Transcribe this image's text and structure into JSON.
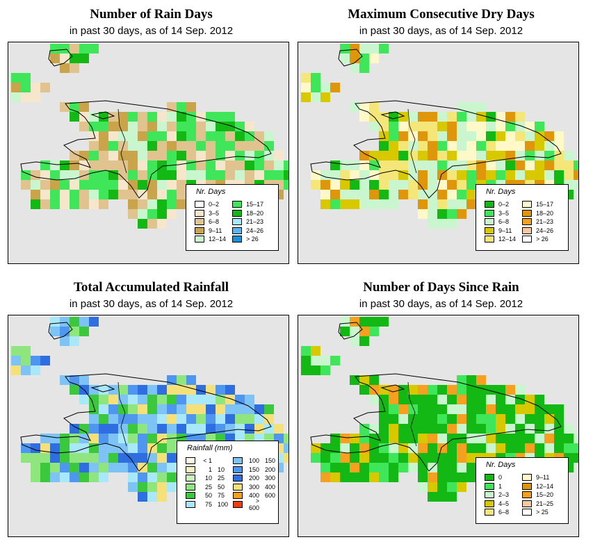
{
  "date_text": "in past 30 days, as of  14 Sep. 2012",
  "panels": [
    {
      "title": "Number of Rain Days",
      "subtitle": "in past 30 days, as of  14 Sep. 2012",
      "legend": {
        "title": "Nr. Days",
        "classes": [
          {
            "label": "0–2",
            "color": "#ffffff"
          },
          {
            "label": "3–5",
            "color": "#f5e6cc"
          },
          {
            "label": "6–8",
            "color": "#e0c38e"
          },
          {
            "label": "9–11",
            "color": "#c9a44b"
          },
          {
            "label": "12–14",
            "color": "#c9f5cf"
          },
          {
            "label": "15–17",
            "color": "#3fe65a"
          },
          {
            "label": "18–20",
            "color": "#14b814"
          },
          {
            "label": "21–23",
            "color": "#a8e8f8"
          },
          {
            "label": "24–26",
            "color": "#5ab4ee"
          },
          {
            "label": "> 26",
            "color": "#1b8fd6"
          }
        ]
      }
    },
    {
      "title": "Maximum Consecutive Dry Days",
      "subtitle": "in past 30 days, as of  14 Sep. 2012",
      "legend": {
        "title": "Nr. Days",
        "classes": [
          {
            "label": "0–2",
            "color": "#14b814"
          },
          {
            "label": "3–5",
            "color": "#3fe65a"
          },
          {
            "label": "6–8",
            "color": "#c9f5cf"
          },
          {
            "label": "9–11",
            "color": "#d8c800"
          },
          {
            "label": "12–14",
            "color": "#f5e67a"
          },
          {
            "label": "15–17",
            "color": "#fff8c8"
          },
          {
            "label": "18–20",
            "color": "#e0960a"
          },
          {
            "label": "21–23",
            "color": "#f5a01e"
          },
          {
            "label": "24–26",
            "color": "#f8c8a0"
          },
          {
            "label": "> 26",
            "color": "#ffffff"
          }
        ]
      }
    },
    {
      "title": "Total Accumulated Rainfall",
      "subtitle": "in past 30 days, as of  14 Sep. 2012",
      "legend": {
        "title": "Rainfall (mm)",
        "classes": [
          {
            "lo": "< 1",
            "hi": "",
            "color": "#fff8e6"
          },
          {
            "lo": "1",
            "hi": "10",
            "color": "#f8f0c0"
          },
          {
            "lo": "10",
            "hi": "25",
            "color": "#c9f5bc"
          },
          {
            "lo": "25",
            "hi": "50",
            "color": "#8fe67e"
          },
          {
            "lo": "50",
            "hi": "75",
            "color": "#3cc83c"
          },
          {
            "lo": "75",
            "hi": "100",
            "color": "#a8e8f8"
          },
          {
            "lo": "100",
            "hi": "150",
            "color": "#7ec3f5"
          },
          {
            "lo": "150",
            "hi": "200",
            "color": "#4e96f0"
          },
          {
            "lo": "200",
            "hi": "300",
            "color": "#2e6ee0"
          },
          {
            "lo": "300",
            "hi": "400",
            "color": "#f5e07a"
          },
          {
            "lo": "400",
            "hi": "600",
            "color": "#f5a01e"
          },
          {
            "lo": "> 600",
            "hi": "",
            "color": "#f03c14"
          }
        ]
      }
    },
    {
      "title": "Number of Days Since Rain",
      "subtitle": "in past 30 days, as of  14 Sep. 2012",
      "legend": {
        "title": "Nr. Days",
        "classes": [
          {
            "label": "0",
            "color": "#14b814"
          },
          {
            "label": "1",
            "color": "#3fe65a"
          },
          {
            "label": "2–3",
            "color": "#c9f5cf"
          },
          {
            "label": "4–5",
            "color": "#d8c800"
          },
          {
            "label": "6–8",
            "color": "#f5e67a"
          },
          {
            "label": "9–11",
            "color": "#fff8c8"
          },
          {
            "label": "12–14",
            "color": "#e0960a"
          },
          {
            "label": "15–20",
            "color": "#f5a01e"
          },
          {
            "label": "21–25",
            "color": "#f8c8a0"
          },
          {
            "label": "> 25",
            "color": "#ffffff"
          }
        ]
      }
    }
  ]
}
